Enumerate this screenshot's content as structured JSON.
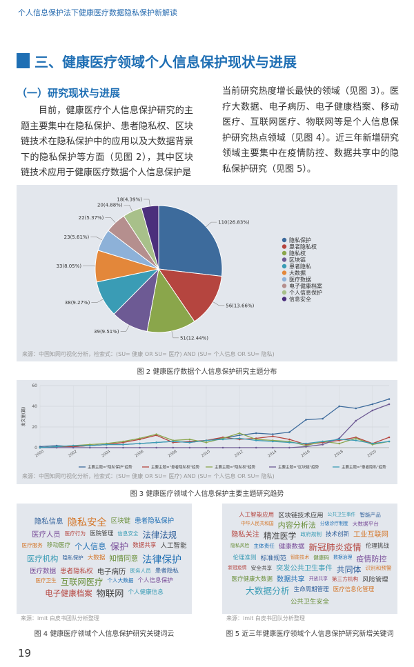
{
  "header": "个人信息保护法下健康医疗数据隐私保护新解读",
  "section_title": "三、健康医疗领域个人信息保护现状与进展",
  "subsection_title": "（一）研究现状与进展",
  "paragraphs": [
    "目前，健康医疗个人信息保护研究的主题主要集中在隐私保护、患者隐私权、区块链技术在隐私保护中的应用以及大数据背景下的隐私保护等方面（见图 2），其中区块链技术应用于健康医疗数据个人信息保护是",
    "当前研究热度增长最快的领域（见图 3）。医疗大数据、电子病历、电子健康档案、移动医疗、互联网医疗、物联网等是个人信息保护研究热点领域（见图 4）。近三年新增研究领域主要集中在疫情防控、数据共享中的隐私保护研究（见图 5）。"
  ],
  "chart_data": [
    {
      "type": "pie",
      "categories": [
        "隐私保护",
        "患者隐私权",
        "隐私权",
        "区块链",
        "患者隐私",
        "大数据",
        "医疗数据",
        "电子健康档案",
        "个人信息保护",
        "信息安全"
      ],
      "values": [
        110,
        56,
        51,
        39,
        38,
        33,
        23,
        22,
        20,
        18
      ],
      "value_labels": [
        "110(26.83%)",
        "56(13.66%)",
        "51(12.44%)",
        "39(9.51%)",
        "38(9.27%)",
        "33(8.05%)",
        "23(5.61%)",
        "22(5.37%)",
        "20(4.88%)",
        "18(4.39%)"
      ],
      "colors": [
        "#3d6b9c",
        "#b5453f",
        "#8aa64b",
        "#6d5a94",
        "#3a9cb5",
        "#e3873a",
        "#8db1d8",
        "#b58f8e",
        "#a8c08a",
        "#4b2f7c"
      ],
      "legend": "right",
      "source": "来源：中国知网可视化分析，检索式：(SU= 健康 OR SU= 医疗) AND (SU= 个人信息 OR SU= 隐私)",
      "caption": "图 2 健康医疗数据个人信息保护研究主题分布"
    },
    {
      "type": "line",
      "x": [
        2000,
        2001,
        2002,
        2003,
        2004,
        2005,
        2006,
        2007,
        2008,
        2009,
        2010,
        2011,
        2012,
        2013,
        2014,
        2015,
        2016,
        2017,
        2018,
        2019,
        2020,
        2021
      ],
      "series": [
        {
          "name": "主要主题=\"隐私保护\"趋势",
          "color": "#3d6b9c",
          "values": [
            1,
            2,
            1,
            2,
            3,
            3,
            4,
            5,
            6,
            5,
            7,
            9,
            12,
            14,
            13,
            15,
            27,
            28,
            40,
            38,
            42,
            47
          ]
        },
        {
          "name": "主要主题=\"患者隐私权\"趋势",
          "color": "#b5453f",
          "values": [
            0,
            1,
            1,
            2,
            3,
            5,
            8,
            12,
            5,
            6,
            7,
            10,
            8,
            9,
            11,
            8,
            3,
            5,
            7,
            10,
            4,
            10
          ]
        },
        {
          "name": "主要主题=\"隐私权\"趋势",
          "color": "#8aa64b",
          "values": [
            0,
            1,
            2,
            3,
            4,
            6,
            9,
            13,
            7,
            8,
            5,
            9,
            14,
            8,
            7,
            6,
            2,
            6,
            4,
            9,
            3,
            6
          ]
        },
        {
          "name": "主要主题=\"区块链\"趋势",
          "color": "#6d5a94",
          "values": [
            0,
            0,
            0,
            0,
            0,
            0,
            0,
            0,
            0,
            0,
            0,
            0,
            0,
            0,
            0,
            0,
            1,
            3,
            9,
            26,
            36,
            42
          ]
        },
        {
          "name": "主要主题=\"患者隐私\"趋势",
          "color": "#3a9cb5",
          "values": [
            0,
            1,
            2,
            2,
            3,
            3,
            4,
            5,
            6,
            5,
            7,
            8,
            9,
            7,
            6,
            5,
            4,
            6,
            8,
            7,
            4,
            6
          ]
        }
      ],
      "xlim": [
        2000,
        2021
      ],
      "xticks": [
        2000,
        2002,
        2004,
        2006,
        2008,
        2010,
        2012,
        2014,
        2016,
        2018,
        2020
      ],
      "ylim": [
        0,
        60
      ],
      "yticks": [
        0,
        20,
        40,
        60
      ],
      "y_label": "发文量(篇)",
      "grid": true,
      "legend": "bottom",
      "source": "来源：中国知网可视化分析，检索式：(SU= 健康 OR SU= 医疗) AND (SU= 个人信息 OR SU= 隐私)",
      "caption": "图 3 健康医疗领域个人信息保护主要主题研究趋势"
    }
  ],
  "word_clouds": [
    {
      "words": [
        "隐私信息",
        "隐私安全",
        "区块链",
        "患者隐私保护",
        "医疗人员",
        "医疗行为",
        "医院管理",
        "信息安全",
        "法律法规",
        "医疗服务",
        "移动医疗",
        "个人信息",
        "保护",
        "数据共享",
        "人工智能",
        "医疗机构",
        "隐私保护",
        "大数据",
        "知情同意",
        "法律保护",
        "医疗数据",
        "患者隐私权",
        "电子病历",
        "医务人员",
        "患者隐私",
        "医疗卫生",
        "互联网医疗",
        "个人大数据",
        "个人信息保护",
        "电子健康档案",
        "物联网",
        "个人健康信息"
      ],
      "source": "来源：imit 白皮书团队分析整理",
      "caption": "图 4 健康医疗领域个人信息保护研究关键词云"
    },
    {
      "words": [
        "人工智能应用",
        "区块链技术应用",
        "公共卫生事件",
        "智能产品",
        "中华人民共和国",
        "内容分析法",
        "分级诊疗制度",
        "大数据平台",
        "隐私关注",
        "精准医学",
        "政府规制",
        "技术创新",
        "工业互联网",
        "隐私风险",
        "主体责任",
        "健康数据",
        "新冠肺炎疫情",
        "伦理挑战",
        "伦理准则",
        "标准规范",
        "智能技术",
        "健康码",
        "数据治理",
        "疫情防控",
        "新冠疫情",
        "安全共享",
        "突发公共卫生事件",
        "共同体",
        "识别和预警",
        "医疗健康大数据",
        "数据共享",
        "开放共享",
        "第三方机构",
        "风险管理",
        "大数据分析",
        "生命周期管理",
        "医疗信息化管理",
        "公共卫生安全"
      ],
      "source": "来源：imit 白皮书团队分析整理",
      "caption": "图 5 近三年健康医疗领域个人信息保护研究新增关键词"
    }
  ],
  "page_number": "19"
}
